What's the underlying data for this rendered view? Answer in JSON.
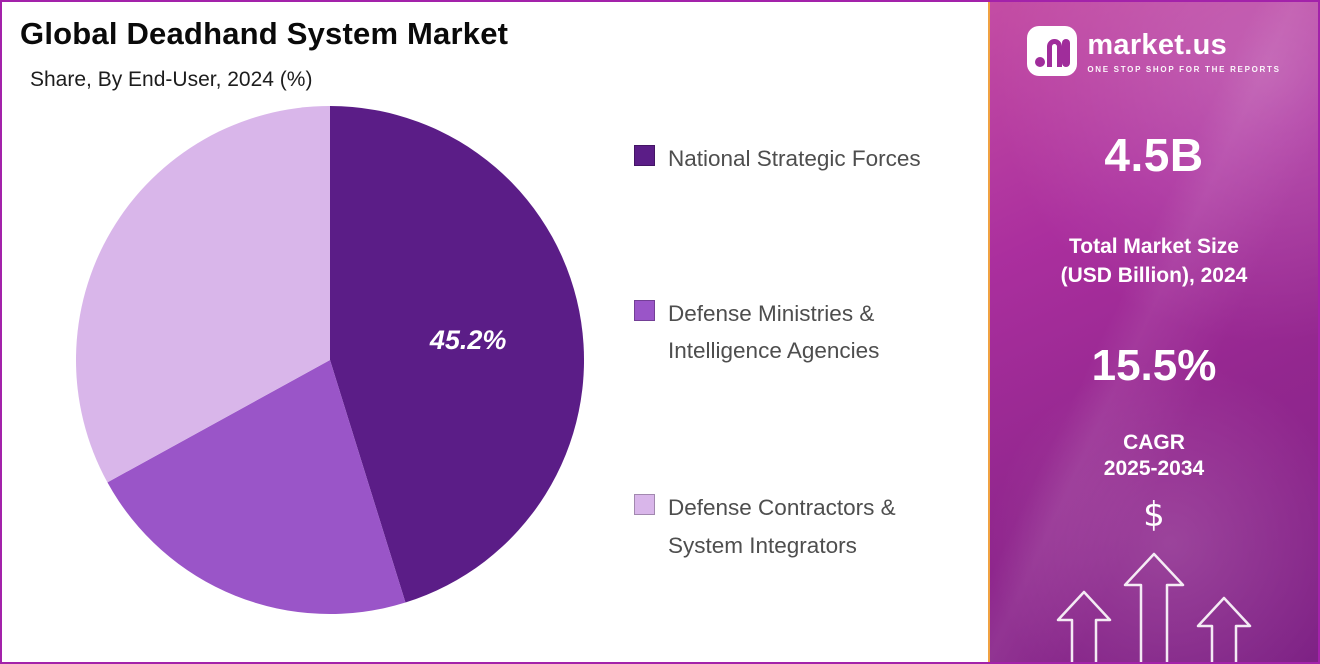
{
  "header": {
    "title": "Global Deadhand System Market",
    "subtitle": "Share, By End-User, 2024 (%)"
  },
  "chart_data": {
    "type": "pie",
    "title": "Global Deadhand System Market",
    "subtitle": "Share, By End-User, 2024 (%)",
    "labels": [
      "National Strategic Forces",
      "Defense Ministries & Intelligence Agencies",
      "Defense Contractors & System Integrators"
    ],
    "values": [
      45.2,
      21.8,
      33.0
    ],
    "colors": [
      "#5b1d87",
      "#9a55c8",
      "#d9b6ea"
    ],
    "data_labels": [
      "45.2%",
      "",
      ""
    ],
    "start_angle_deg": 0,
    "direction": "clockwise",
    "legend_position": "right"
  },
  "legend": {
    "items": [
      {
        "label": "National Strategic Forces",
        "color": "#5b1d87"
      },
      {
        "label": "Defense Ministries &\nIntelligence Agencies",
        "color": "#9a55c8"
      },
      {
        "label": "Defense Contractors &\nSystem Integrators",
        "color": "#d9b6ea"
      }
    ]
  },
  "sidebar": {
    "logo": {
      "brand": "market.us",
      "tagline": "ONE STOP SHOP FOR THE REPORTS"
    },
    "market_size_value": "4.5B",
    "market_size_label": "Total Market Size\n(USD Billion), 2024",
    "cagr_value": "15.5%",
    "cagr_label": "CAGR",
    "cagr_period": "2025-2034",
    "dollar_symbol": "$",
    "colors": {
      "gradient_top": "#c44da4",
      "gradient_bottom": "#7e2285",
      "accent_border": "#f0a243",
      "outer_border": "#a322aa"
    }
  }
}
